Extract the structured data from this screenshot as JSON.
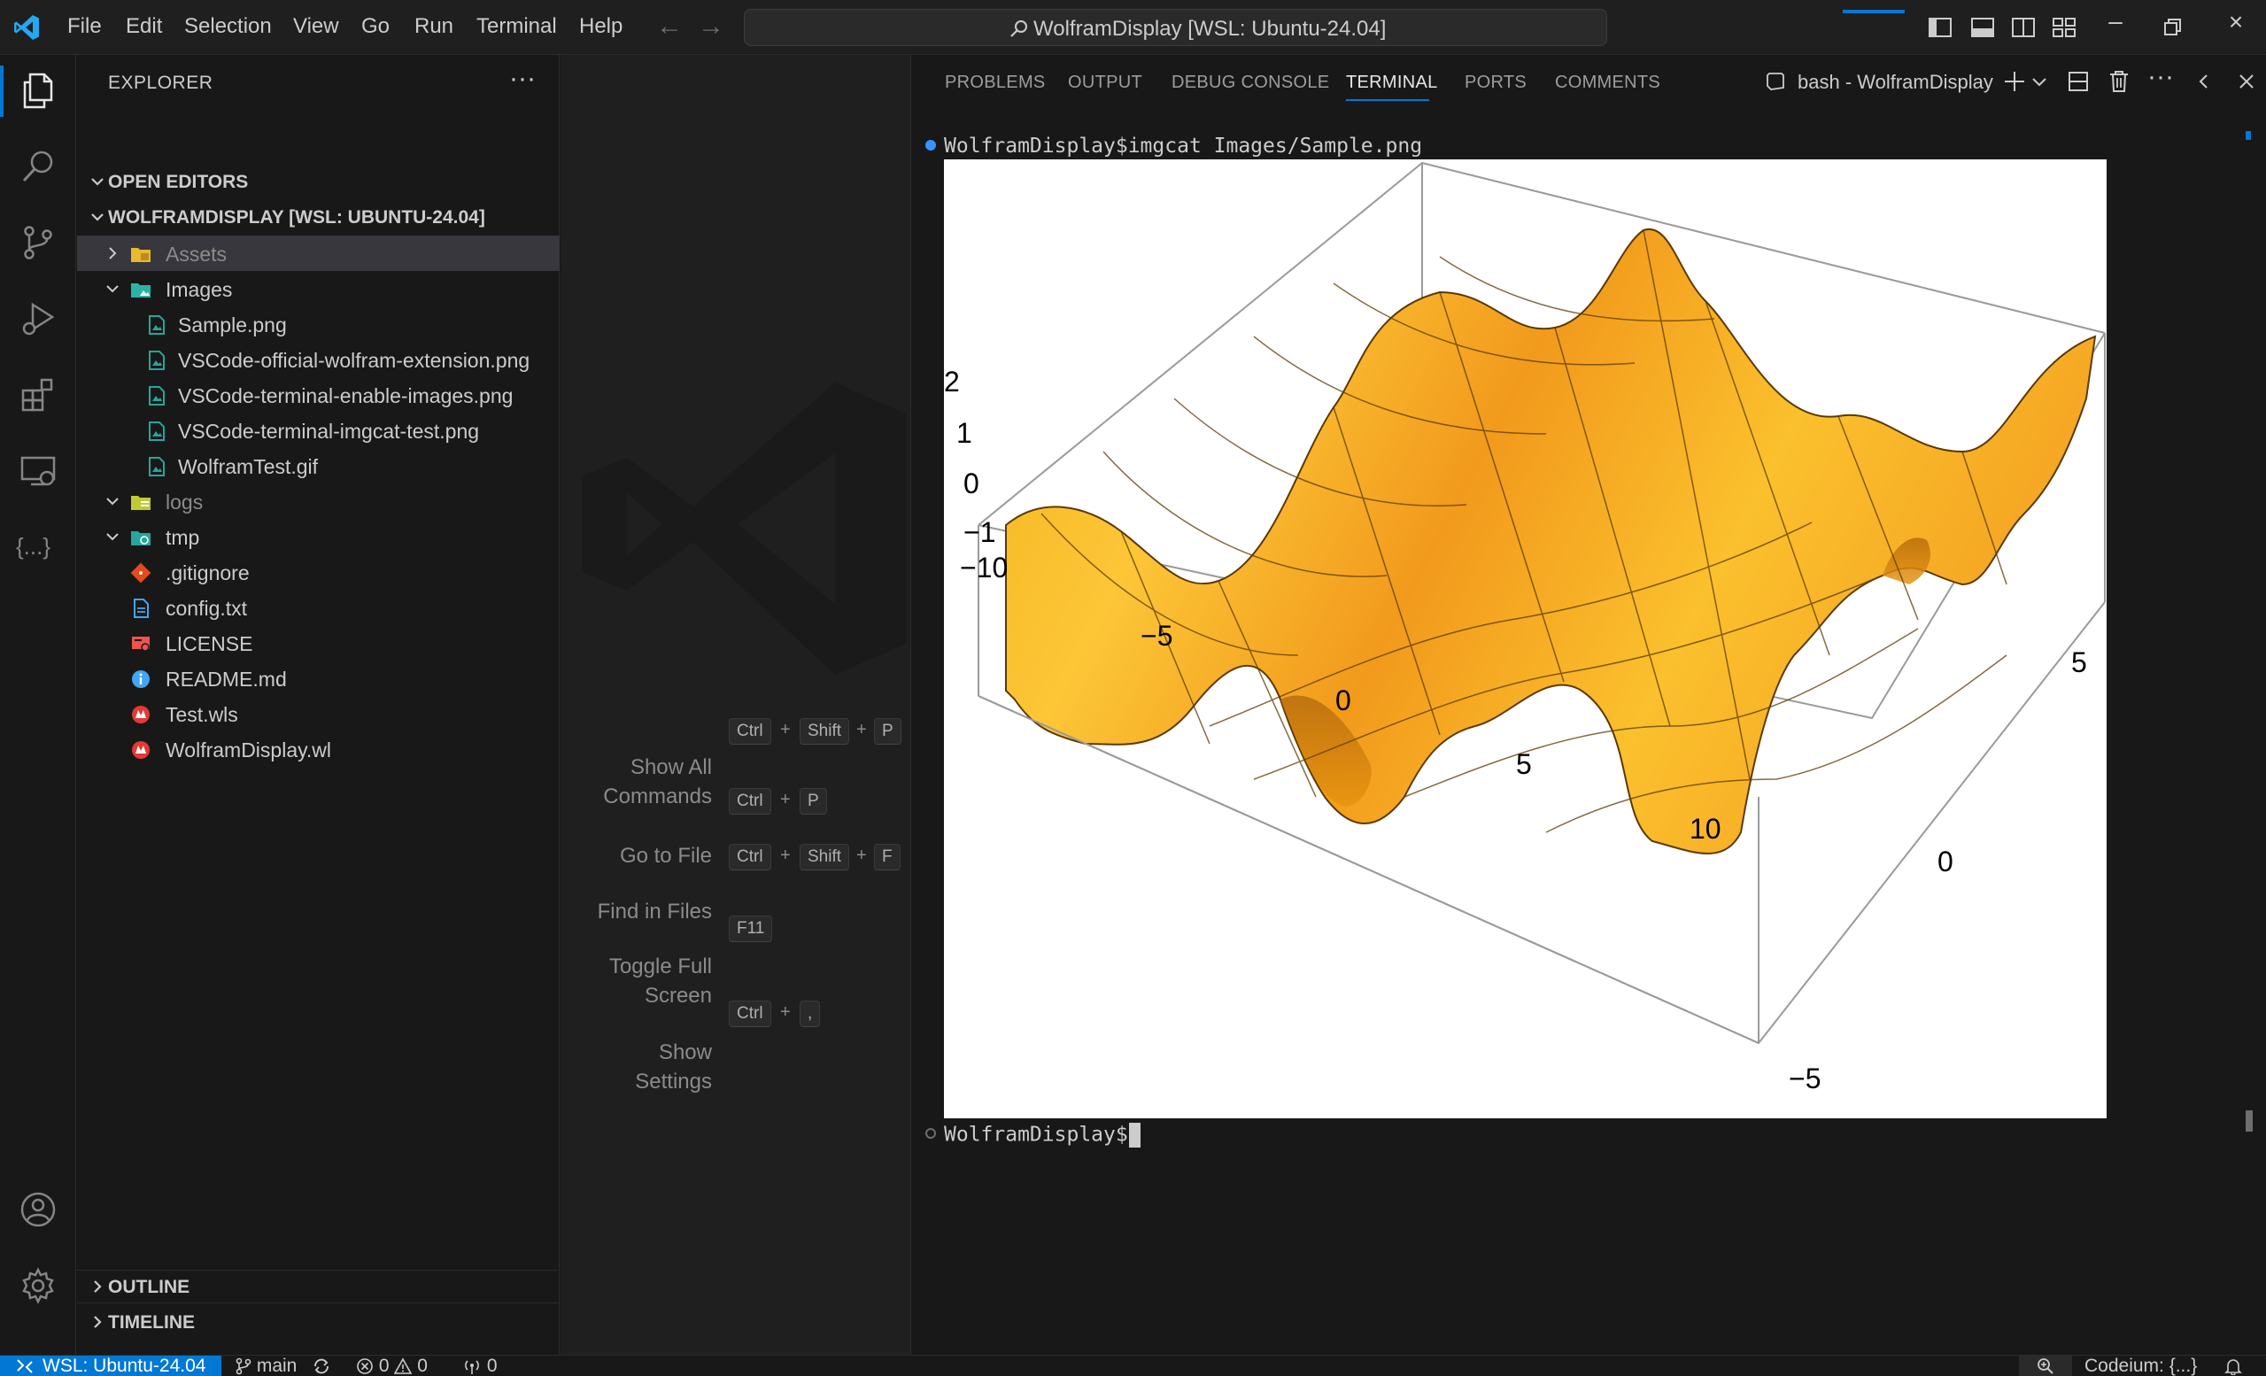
{
  "titlebar": {
    "menu": [
      "File",
      "Edit",
      "Selection",
      "View",
      "Go",
      "Run",
      "Terminal",
      "Help"
    ],
    "command_center_title": "WolframDisplay [WSL: Ubuntu-24.04]"
  },
  "sidebar": {
    "title": "EXPLORER",
    "open_editors_label": "OPEN EDITORS",
    "workspace_label": "WOLFRAMDISPLAY [WSL: UBUNTU-24.04]",
    "tree": [
      {
        "label": "Assets",
        "icon": "folder-assets-icon"
      },
      {
        "label": "Images",
        "icon": "folder-images-icon"
      },
      {
        "label": "Sample.png",
        "icon": "image-file-icon"
      },
      {
        "label": "VSCode-official-wolfram-extension.png",
        "icon": "image-file-icon"
      },
      {
        "label": "VSCode-terminal-enable-images.png",
        "icon": "image-file-icon"
      },
      {
        "label": "VSCode-terminal-imgcat-test.png",
        "icon": "image-file-icon"
      },
      {
        "label": "WolframTest.gif",
        "icon": "image-file-icon"
      },
      {
        "label": "logs",
        "icon": "folder-logs-icon"
      },
      {
        "label": "tmp",
        "icon": "folder-tmp-icon"
      },
      {
        "label": ".gitignore",
        "icon": "git-icon"
      },
      {
        "label": "config.txt",
        "icon": "text-file-icon"
      },
      {
        "label": "LICENSE",
        "icon": "license-icon"
      },
      {
        "label": "README.md",
        "icon": "info-icon"
      },
      {
        "label": "Test.wls",
        "icon": "wolfram-icon"
      },
      {
        "label": "WolframDisplay.wl",
        "icon": "wolfram-icon"
      }
    ],
    "outline_label": "OUTLINE",
    "timeline_label": "TIMELINE"
  },
  "editor": {
    "shortcuts": [
      {
        "label": "Show All Commands",
        "line1": "Show All",
        "line2": "Commands",
        "keys": [
          "Ctrl",
          "Shift",
          "P"
        ]
      },
      {
        "label": "Go to File",
        "keys": [
          "Ctrl",
          "P"
        ]
      },
      {
        "label": "Find in Files",
        "keys": [
          "Ctrl",
          "Shift",
          "F"
        ]
      },
      {
        "label": "Toggle Full Screen",
        "line1": "Toggle Full",
        "line2": "Screen",
        "keys": [
          "F11"
        ]
      },
      {
        "label": "Show Settings",
        "line1": "Show",
        "line2": "Settings",
        "keys": [
          "Ctrl",
          ","
        ]
      }
    ]
  },
  "panel": {
    "tabs": [
      "PROBLEMS",
      "OUTPUT",
      "DEBUG CONSOLE",
      "TERMINAL",
      "PORTS",
      "COMMENTS"
    ],
    "active_tab": "TERMINAL",
    "terminal_name": "bash - WolframDisplay",
    "prompt_line_1": "WolframDisplay$imgcat Images/Sample.png",
    "prompt_line_2": "WolframDisplay$"
  },
  "plot": {
    "type": "3d-surface",
    "z_ticks": [
      "2",
      "1",
      "0",
      "−1"
    ],
    "x_ticks": [
      "−10",
      "−5",
      "0",
      "5",
      "10"
    ],
    "y_ticks": [
      "−5",
      "0",
      "5"
    ],
    "surface_color": "#f5b21c"
  },
  "statusbar": {
    "remote": "WSL: Ubuntu-24.04",
    "branch": "main",
    "errors": "0",
    "warnings": "0",
    "ports": "0",
    "codeium": "Codeium: {...}"
  },
  "colors": {
    "accent": "#0078d4",
    "background": "#181818",
    "editor_bg": "#1f1f1f"
  }
}
